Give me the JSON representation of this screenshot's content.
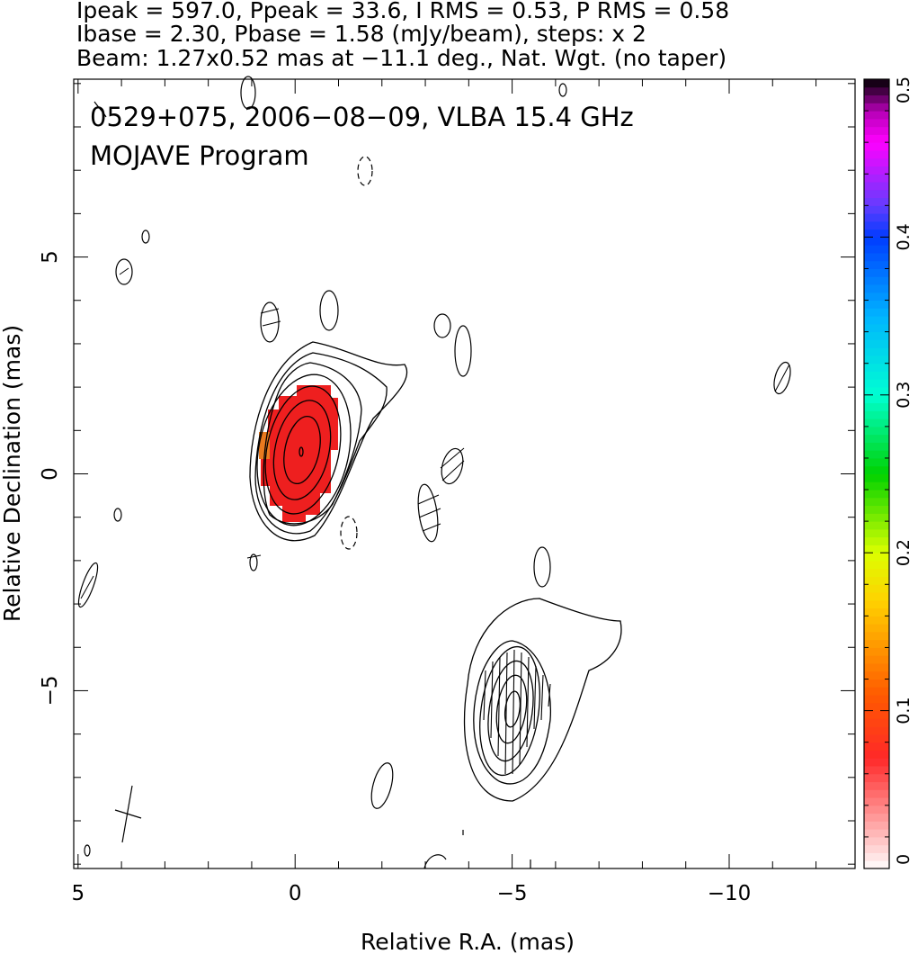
{
  "header": {
    "line1": "Ipeak = 597.0, Ppeak = 33.6, I RMS = 0.53, P RMS = 0.58",
    "line2": "Ibase = 2.30, Pbase = 1.58 (mJy/beam), steps: x 2",
    "line3": "Beam: 1.27x0.52 mas at −11.1 deg., Nat. Wgt. (no taper)"
  },
  "plot_title": {
    "line1": "0529+075, 2006−08−09, VLBA 15.4 GHz",
    "line2": "MOJAVE Program"
  },
  "chart_data": {
    "type": "heatmap",
    "xlabel": "Relative R.A. (mas)",
    "ylabel": "Relative Declination (mas)",
    "xlim": [
      5.1,
      -12.9
    ],
    "ylim": [
      -9.1,
      9.1
    ],
    "xticks": [
      5,
      0,
      -5,
      -10
    ],
    "xtick_labels": [
      "5",
      "0",
      "−5",
      "−10"
    ],
    "yticks": [
      5,
      0,
      -5
    ],
    "ytick_labels": [
      "5",
      "0",
      "−5"
    ],
    "colorbar": {
      "range": [
        0,
        0.5
      ],
      "ticks": [
        0,
        0.1,
        0.2,
        0.3,
        0.4,
        0.5
      ],
      "tick_labels": [
        "0",
        "0.1",
        "0.2",
        "0.3",
        "0.4",
        "0.5"
      ]
    },
    "components": [
      {
        "name_hint": "core",
        "ra": -0.1,
        "dec": 0.5,
        "peak_mJy_per_beam": 597.0
      },
      {
        "name_hint": "jet",
        "ra": -5.0,
        "dec": -5.4
      }
    ],
    "fractional_polarization_region": {
      "ra_center": -0.2,
      "dec_center": 0.5,
      "approx_value": 0.05
    },
    "contour_base_mJy_per_beam": 2.3,
    "contour_step_factor": 2,
    "beam": {
      "major_mas": 1.27,
      "minor_mas": 0.52,
      "pa_deg": -11.1
    }
  },
  "colors": {
    "contour": "#000000",
    "polarization_fill": "#ee1f1f",
    "polarization_edge": "#ff6a5a"
  }
}
